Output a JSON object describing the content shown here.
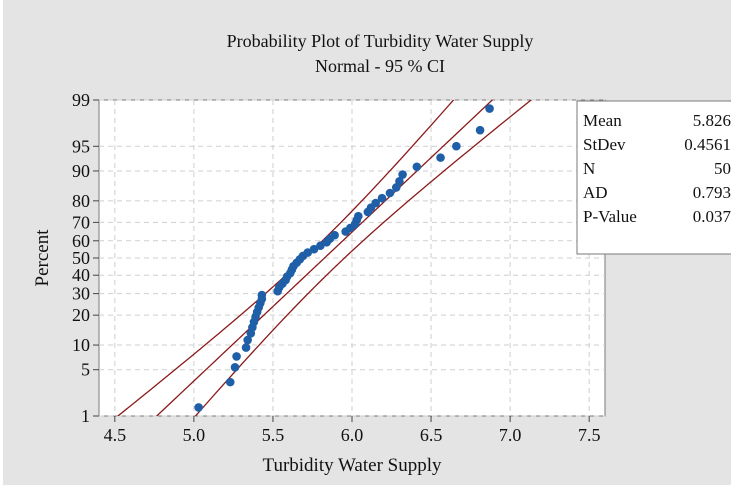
{
  "chart_data": {
    "type": "scatter",
    "title": "Probability Plot of Turbidity Water Supply",
    "subtitle": "Normal - 95 % CI",
    "xlabel": "Turbidity Water Supply",
    "ylabel": "Percent",
    "xlim": [
      4.4,
      7.6
    ],
    "x_ticks": [
      4.5,
      5.0,
      5.5,
      6.0,
      6.5,
      7.0,
      7.5
    ],
    "x_tick_labels": [
      "4.5",
      "5.0",
      "5.5",
      "6.0",
      "6.5",
      "7.0",
      "7.5"
    ],
    "ylim": [
      1,
      99
    ],
    "y_scale": "normal-probability",
    "y_ticks": [
      1,
      5,
      10,
      20,
      30,
      40,
      50,
      60,
      70,
      80,
      90,
      95,
      99
    ],
    "y_tick_labels": [
      "1",
      "5",
      "10",
      "20",
      "30",
      "40",
      "50",
      "60",
      "70",
      "80",
      "90",
      "95",
      "99"
    ],
    "grid": true,
    "colors": {
      "points": "#1f5fa8",
      "lines": "#8b1a1a",
      "plot_bg": "#ffffff",
      "figure_bg": "#e4e4e4"
    },
    "fit": {
      "mean": 5.826,
      "stdev": 0.4561,
      "n": 50,
      "ci": 0.95
    },
    "points": {
      "x": [
        5.03,
        5.23,
        5.26,
        5.27,
        5.33,
        5.34,
        5.36,
        5.37,
        5.38,
        5.39,
        5.4,
        5.41,
        5.42,
        5.43,
        5.43,
        5.53,
        5.54,
        5.56,
        5.58,
        5.59,
        5.61,
        5.62,
        5.63,
        5.65,
        5.67,
        5.69,
        5.72,
        5.76,
        5.8,
        5.84,
        5.86,
        5.89,
        5.96,
        5.99,
        6.02,
        6.03,
        6.04,
        6.1,
        6.12,
        6.15,
        6.19,
        6.24,
        6.28,
        6.3,
        6.32,
        6.41,
        6.56,
        6.66,
        6.81,
        6.87
      ],
      "y": [
        1.39,
        3.38,
        5.38,
        7.37,
        9.36,
        11.35,
        13.35,
        15.34,
        17.33,
        19.32,
        21.31,
        23.31,
        25.3,
        27.29,
        29.28,
        31.27,
        33.27,
        35.26,
        37.25,
        39.24,
        41.24,
        43.23,
        45.22,
        47.21,
        49.2,
        51.2,
        53.19,
        55.18,
        57.17,
        59.16,
        61.16,
        63.15,
        65.14,
        67.13,
        69.12,
        71.12,
        73.11,
        75.1,
        77.09,
        79.08,
        81.08,
        83.07,
        85.06,
        87.05,
        89.04,
        91.04,
        93.03,
        95.02,
        97.01,
        98.61
      ]
    },
    "legend_position": "right",
    "stats": [
      {
        "label": "Mean",
        "value": "5.826"
      },
      {
        "label": "StDev",
        "value": "0.4561"
      },
      {
        "label": "N",
        "value": "50"
      },
      {
        "label": "AD",
        "value": "0.793"
      },
      {
        "label": "P-Value",
        "value": "0.037"
      }
    ]
  }
}
